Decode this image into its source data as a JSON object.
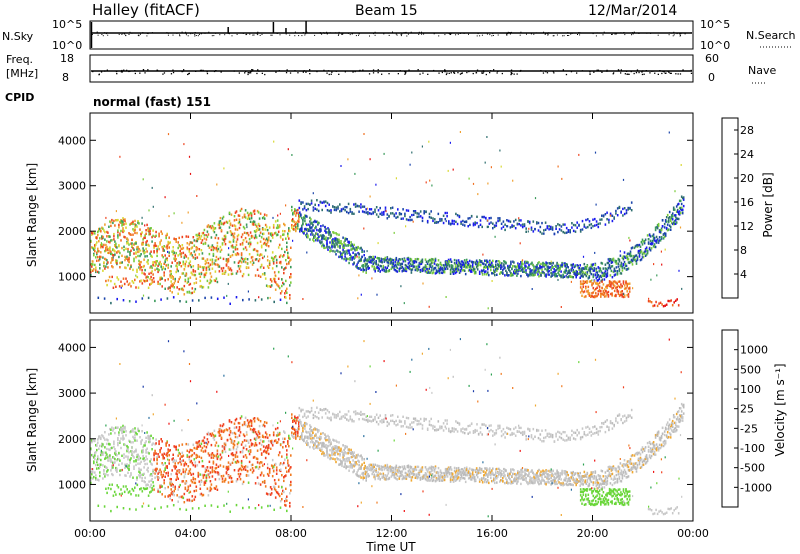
{
  "header": {
    "station": "Halley (fitACF)",
    "beam": "Beam 15",
    "date": "12/Mar/2014"
  },
  "strips": {
    "nsky": {
      "label": "N.Sky",
      "top_label": "10^5",
      "bottom_label": "10^0"
    },
    "nsearch": {
      "label": "N.Search",
      "top_label": "10^5",
      "bottom_label": "10^0"
    },
    "freq": {
      "label_line1": "Freq.",
      "label_line2": "[MHz]",
      "top_label": "18",
      "bottom_label": "8"
    },
    "nave": {
      "label": "Nave",
      "top_label": "60",
      "bottom_label": "0"
    },
    "cpid": {
      "label": "CPID",
      "value": "normal (fast) 151"
    }
  },
  "colors": {
    "power": [
      "#1a1aee",
      "#1a44aa",
      "#2e6e6e",
      "#3a9a5a",
      "#7acc3a",
      "#d9d933",
      "#f0a030",
      "#f07020",
      "#ee4420",
      "#e61010"
    ],
    "velocity": [
      "#ee1010",
      "#f04020",
      "#f07a20",
      "#f0a830",
      "#c8c8c8",
      "#bbbbbb",
      "#6ad63a",
      "#2aa050",
      "#2a70a0",
      "#1a3aa8"
    ]
  },
  "chart_data": [
    {
      "type": "heatmap",
      "title": "Power",
      "ylabel": "Slant Range [km]",
      "xlabel": "",
      "ylim": [
        200,
        4600
      ],
      "yticks": [
        "1000",
        "2000",
        "3000",
        "4000"
      ],
      "colorbar": {
        "label": "Power [dB]",
        "ticks": [
          "4",
          "8",
          "12",
          "16",
          "20",
          "24",
          "28"
        ],
        "range": [
          0,
          30
        ]
      },
      "grid": false
    },
    {
      "type": "heatmap",
      "title": "Velocity",
      "ylabel": "Slant Range [km]",
      "xlabel": "Time UT",
      "ylim": [
        200,
        4600
      ],
      "yticks": [
        "1000",
        "2000",
        "3000",
        "4000"
      ],
      "xticks": [
        "00:00",
        "04:00",
        "08:00",
        "12:00",
        "16:00",
        "20:00",
        "00:00"
      ],
      "colorbar": {
        "label": "Velocity [m s⁻¹]",
        "ticks": [
          "1000",
          "500",
          "100",
          "25",
          "-25",
          "-100",
          "-500",
          "-1000"
        ]
      },
      "grid": false
    }
  ]
}
